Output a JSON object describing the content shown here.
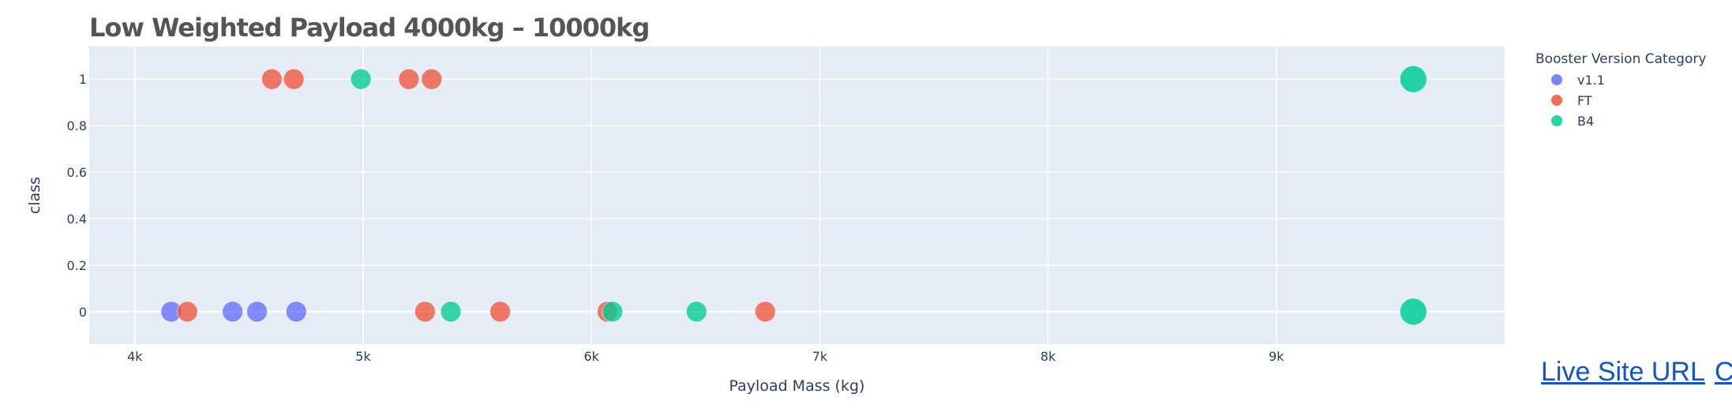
{
  "links": {
    "live_site": "Live Site URL",
    "second": "C"
  },
  "colors": {
    "plot_bg": "#e5ecf6",
    "grid": "#ffffff",
    "text": "#2a3f5f"
  },
  "chart_data": {
    "type": "scatter",
    "title": "Low Weighted Payload 4000kg – 10000kg",
    "xlabel": "Payload Mass (kg)",
    "ylabel": "class",
    "xlim": [
      3800,
      10000
    ],
    "ylim": [
      -0.14,
      1.14
    ],
    "xticks": [
      4000,
      5000,
      6000,
      7000,
      8000,
      9000
    ],
    "xtick_labels": [
      "4k",
      "5k",
      "6k",
      "7k",
      "8k",
      "9k"
    ],
    "yticks": [
      0,
      0.2,
      0.4,
      0.6,
      0.8,
      1
    ],
    "ytick_labels": [
      "0",
      "0.2",
      "0.4",
      "0.6",
      "0.8",
      "1"
    ],
    "grid": true,
    "legend_title": "Booster Version Category",
    "legend_position": "top-right",
    "series": [
      {
        "name": "v1.1",
        "color": "#636efa",
        "points": [
          {
            "x": 4159,
            "y": 0
          },
          {
            "x": 4428,
            "y": 0
          },
          {
            "x": 4535,
            "y": 0
          },
          {
            "x": 4707,
            "y": 0
          }
        ]
      },
      {
        "name": "FT",
        "color": "#ef553b",
        "points": [
          {
            "x": 4600,
            "y": 1
          },
          {
            "x": 4696,
            "y": 1
          },
          {
            "x": 5200,
            "y": 1
          },
          {
            "x": 5300,
            "y": 1
          },
          {
            "x": 4230,
            "y": 0
          },
          {
            "x": 5271,
            "y": 0
          },
          {
            "x": 5600,
            "y": 0
          },
          {
            "x": 6070,
            "y": 0
          },
          {
            "x": 6761,
            "y": 0
          }
        ]
      },
      {
        "name": "B4",
        "color": "#00cc96",
        "points": [
          {
            "x": 4990,
            "y": 1
          },
          {
            "x": 9600,
            "y": 1
          },
          {
            "x": 5384,
            "y": 0
          },
          {
            "x": 6092,
            "y": 0
          },
          {
            "x": 6460,
            "y": 0
          },
          {
            "x": 9600,
            "y": 0
          }
        ]
      }
    ]
  }
}
